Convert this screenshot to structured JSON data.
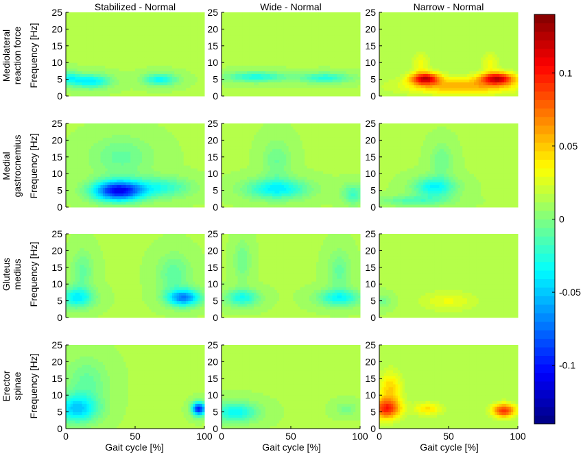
{
  "chart_data": {
    "type": "heatmap",
    "columns": [
      "Stabilized - Normal",
      "Wide - Normal",
      "Narrow - Normal"
    ],
    "rows": [
      {
        "label_lines": [
          "Mediolateral",
          "reaction force"
        ]
      },
      {
        "label_lines": [
          "Medial",
          "gastrocnemius"
        ]
      },
      {
        "label_lines": [
          "Gluteus",
          "medius"
        ]
      },
      {
        "label_lines": [
          "Erector",
          "spinae"
        ]
      }
    ],
    "ylabel": "Frequency [Hz]",
    "xlabel": "Gait cycle [%]",
    "xlim": [
      0,
      100
    ],
    "xticks": [
      0,
      50,
      100
    ],
    "ylim": [
      0,
      25
    ],
    "yticks": [
      0,
      5,
      10,
      15,
      20,
      25
    ],
    "colorbar": {
      "range": [
        -0.14,
        0.14
      ],
      "ticks": [
        -0.1,
        -0.05,
        0,
        0.05,
        0.1
      ],
      "tick_labels": [
        "-0.1",
        "-0.05",
        "0",
        "0.05",
        "0.1"
      ],
      "colormap": "jet"
    },
    "background_value": 0.012,
    "blobs": [
      {
        "panel": [
          0,
          0
        ],
        "x": 18,
        "y": 4.5,
        "sx": 14,
        "sy": 2,
        "v": -0.052
      },
      {
        "panel": [
          0,
          0
        ],
        "x": 68,
        "y": 5,
        "sx": 12,
        "sy": 1.8,
        "v": -0.045
      },
      {
        "panel": [
          0,
          0
        ],
        "x": 2,
        "y": 5.5,
        "sx": 8,
        "sy": 2,
        "v": -0.035
      },
      {
        "panel": [
          0,
          1
        ],
        "x": 25,
        "y": 5.8,
        "sx": 22,
        "sy": 1.5,
        "v": -0.04
      },
      {
        "panel": [
          0,
          1
        ],
        "x": 75,
        "y": 5.5,
        "sx": 18,
        "sy": 1.5,
        "v": -0.038
      },
      {
        "panel": [
          0,
          2
        ],
        "x": 33,
        "y": 5.3,
        "sx": 10,
        "sy": 1.8,
        "v": 0.1
      },
      {
        "panel": [
          0,
          2
        ],
        "x": 85,
        "y": 5.3,
        "sx": 12,
        "sy": 1.8,
        "v": 0.1
      },
      {
        "panel": [
          0,
          2
        ],
        "x": 60,
        "y": 3,
        "sx": 40,
        "sy": 2.5,
        "v": 0.045
      },
      {
        "panel": [
          0,
          2
        ],
        "x": 30,
        "y": 10,
        "sx": 6,
        "sy": 3,
        "v": 0.02
      },
      {
        "panel": [
          0,
          2
        ],
        "x": 80,
        "y": 10,
        "sx": 6,
        "sy": 3,
        "v": 0.02
      },
      {
        "panel": [
          1,
          0
        ],
        "x": 38,
        "y": 5,
        "sx": 18,
        "sy": 3,
        "v": -0.12
      },
      {
        "panel": [
          1,
          0
        ],
        "x": 40,
        "y": 15,
        "sx": 22,
        "sy": 6,
        "v": -0.02
      },
      {
        "panel": [
          1,
          0
        ],
        "x": 70,
        "y": 6,
        "sx": 20,
        "sy": 3,
        "v": -0.035
      },
      {
        "panel": [
          1,
          1
        ],
        "x": 40,
        "y": 5.5,
        "sx": 22,
        "sy": 3,
        "v": -0.05
      },
      {
        "panel": [
          1,
          1
        ],
        "x": 40,
        "y": 14,
        "sx": 10,
        "sy": 6,
        "v": -0.018
      },
      {
        "panel": [
          1,
          1
        ],
        "x": 95,
        "y": 4,
        "sx": 8,
        "sy": 3,
        "v": -0.03
      },
      {
        "panel": [
          1,
          2
        ],
        "x": 40,
        "y": 6,
        "sx": 15,
        "sy": 3,
        "v": -0.048
      },
      {
        "panel": [
          1,
          2
        ],
        "x": 45,
        "y": 14,
        "sx": 8,
        "sy": 5,
        "v": -0.018
      },
      {
        "panel": [
          1,
          2
        ],
        "x": 25,
        "y": 2,
        "sx": 25,
        "sy": 1.5,
        "v": -0.025
      },
      {
        "panel": [
          2,
          0
        ],
        "x": 8,
        "y": 6,
        "sx": 12,
        "sy": 3,
        "v": -0.05
      },
      {
        "panel": [
          2,
          0
        ],
        "x": 12,
        "y": 14,
        "sx": 8,
        "sy": 6,
        "v": -0.02
      },
      {
        "panel": [
          2,
          0
        ],
        "x": 85,
        "y": 6,
        "sx": 12,
        "sy": 2.5,
        "v": -0.08
      },
      {
        "panel": [
          2,
          0
        ],
        "x": 78,
        "y": 13,
        "sx": 12,
        "sy": 6,
        "v": -0.022
      },
      {
        "panel": [
          2,
          1
        ],
        "x": 15,
        "y": 6,
        "sx": 12,
        "sy": 2.5,
        "v": -0.042
      },
      {
        "panel": [
          2,
          1
        ],
        "x": 15,
        "y": 17,
        "sx": 6,
        "sy": 6,
        "v": -0.018
      },
      {
        "panel": [
          2,
          1
        ],
        "x": 85,
        "y": 6,
        "sx": 15,
        "sy": 2.5,
        "v": -0.045
      },
      {
        "panel": [
          2,
          1
        ],
        "x": 85,
        "y": 14,
        "sx": 8,
        "sy": 6,
        "v": -0.02
      },
      {
        "panel": [
          2,
          2
        ],
        "x": 3,
        "y": 5,
        "sx": 6,
        "sy": 2,
        "v": -0.015
      },
      {
        "panel": [
          2,
          2
        ],
        "x": 50,
        "y": 5,
        "sx": 20,
        "sy": 3,
        "v": 0.018
      },
      {
        "panel": [
          3,
          0
        ],
        "x": 8,
        "y": 6,
        "sx": 15,
        "sy": 4,
        "v": -0.06
      },
      {
        "panel": [
          3,
          0
        ],
        "x": 15,
        "y": 14,
        "sx": 15,
        "sy": 7,
        "v": -0.02
      },
      {
        "panel": [
          3,
          0
        ],
        "x": 96,
        "y": 6,
        "sx": 5,
        "sy": 2,
        "v": -0.11
      },
      {
        "panel": [
          3,
          1
        ],
        "x": 10,
        "y": 5,
        "sx": 16,
        "sy": 3,
        "v": -0.045
      },
      {
        "panel": [
          3,
          1
        ],
        "x": 90,
        "y": 6,
        "sx": 8,
        "sy": 2,
        "v": -0.015
      },
      {
        "panel": [
          3,
          2
        ],
        "x": 5,
        "y": 6,
        "sx": 10,
        "sy": 3,
        "v": 0.08
      },
      {
        "panel": [
          3,
          2
        ],
        "x": 8,
        "y": 12,
        "sx": 8,
        "sy": 5,
        "v": 0.035
      },
      {
        "panel": [
          3,
          2
        ],
        "x": 90,
        "y": 5.5,
        "sx": 8,
        "sy": 2,
        "v": 0.08
      },
      {
        "panel": [
          3,
          2
        ],
        "x": 35,
        "y": 6,
        "sx": 10,
        "sy": 2,
        "v": 0.03
      }
    ]
  }
}
